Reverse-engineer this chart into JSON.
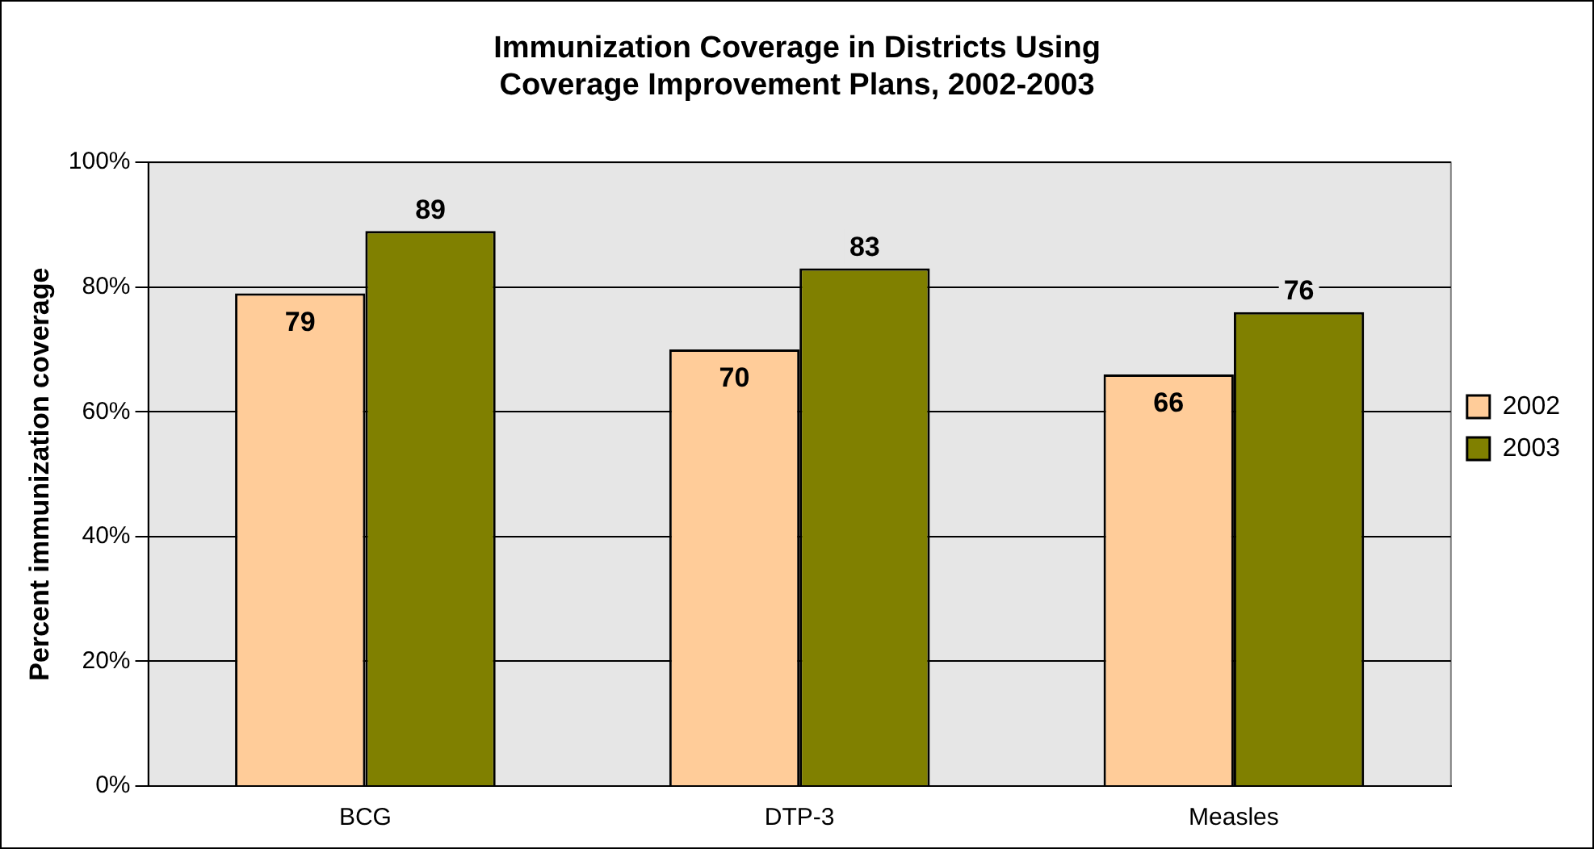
{
  "chart_data": {
    "type": "bar",
    "title": "Immunization Coverage in Districts Using\nCoverage Improvement Plans, 2002-2003",
    "ylabel": "Percent immunization coverage",
    "categories": [
      "BCG",
      "DTP-3",
      "Measles"
    ],
    "series": [
      {
        "name": "2002",
        "color": "#ffcc99",
        "values": [
          79,
          70,
          66
        ]
      },
      {
        "name": "2003",
        "color": "#808000",
        "values": [
          89,
          83,
          76
        ]
      }
    ],
    "ylim": [
      0,
      100
    ],
    "yticks": [
      {
        "value": 0,
        "label": "0%"
      },
      {
        "value": 20,
        "label": "20%"
      },
      {
        "value": 40,
        "label": "40%"
      },
      {
        "value": 60,
        "label": "60%"
      },
      {
        "value": 80,
        "label": "80%"
      },
      {
        "value": 100,
        "label": "100%"
      }
    ],
    "grid": "y",
    "legend": "right",
    "data_labels": true
  }
}
